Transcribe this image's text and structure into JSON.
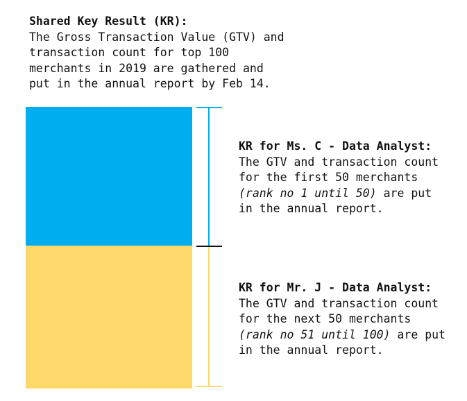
{
  "colors": {
    "first_block": "#00adef",
    "next_block": "#fdd96b",
    "first_bracket": "#00adef",
    "next_bracket": "#fdd96b",
    "divider": "#111111"
  },
  "shared_kr": {
    "heading": "Shared Key Result (KR):",
    "lines": [
      "The Gross Transaction Value (GTV) and",
      "transaction count for top 100",
      "merchants in 2019 are gathered and",
      "put in the annual report by Feb 14."
    ]
  },
  "kr_c": {
    "heading": "KR for Ms. C - Data Analyst:",
    "line1": "The GTV and transaction count",
    "line2": "for the first 50 merchants",
    "line3_italic": "(rank no 1 until 50)",
    "line3_rest": " are put",
    "line4": "in the annual report."
  },
  "kr_j": {
    "heading": "KR for Mr. J - Data Analyst:",
    "line1": "The GTV and transaction count",
    "line2": "for the next 50 merchants",
    "line3_italic": "(rank no 51 until 100)",
    "line3_rest": " are put",
    "line4": "in the annual report."
  }
}
